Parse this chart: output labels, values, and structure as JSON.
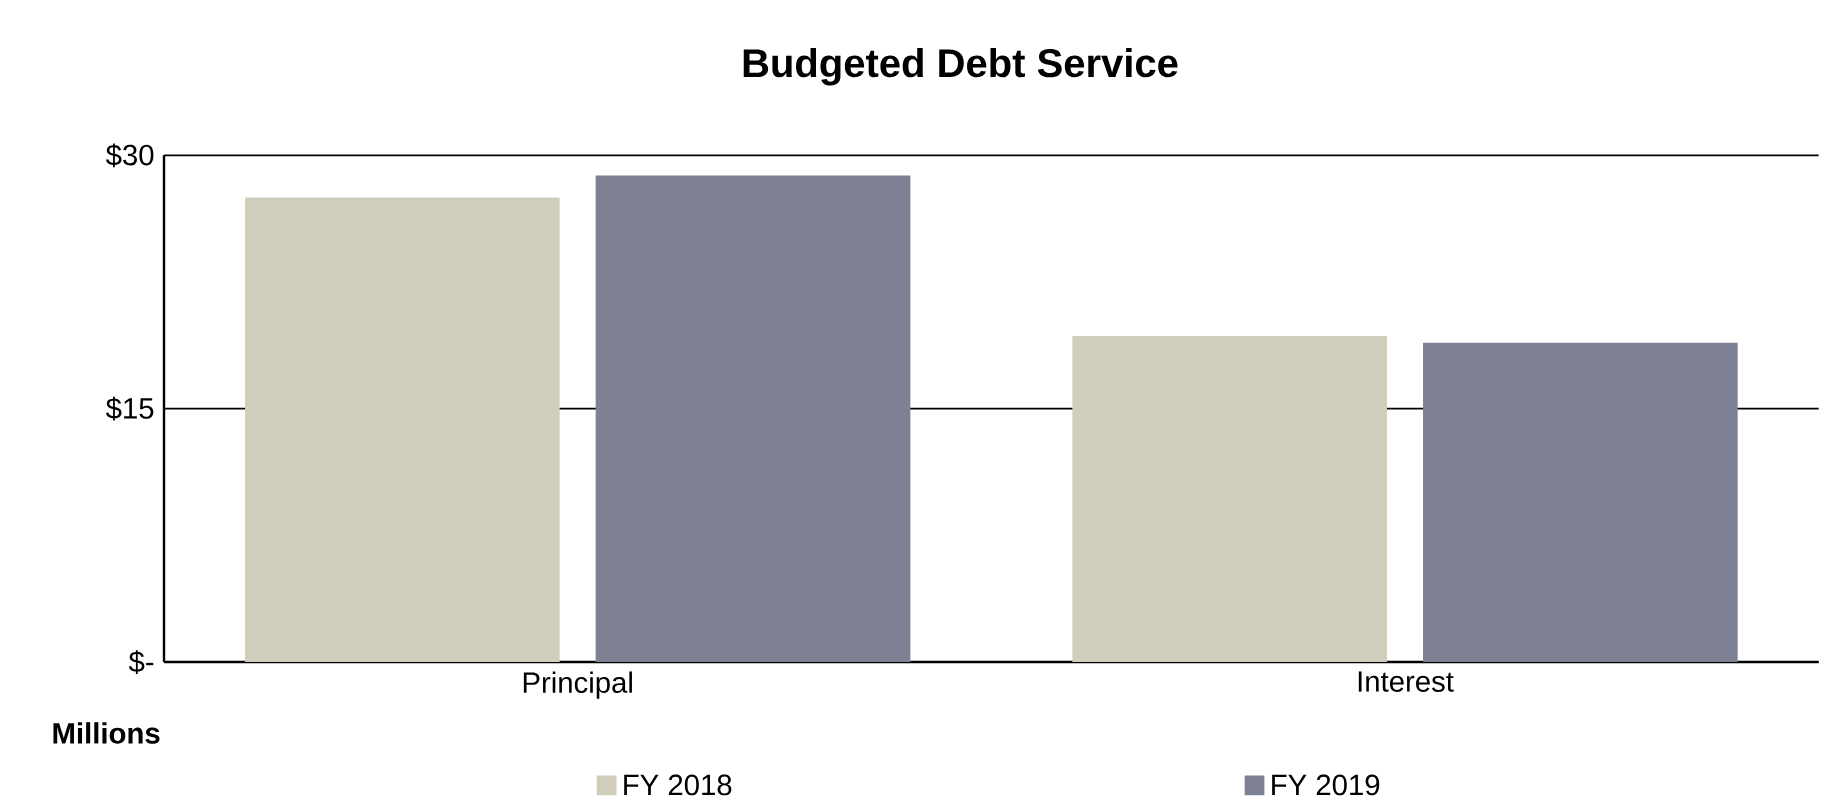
{
  "chart_data": {
    "type": "bar",
    "title": "**Budgeted Debt Service**",
    "ylabel": "**Millions**",
    "categories": [
      "Principal",
      "Interest"
    ],
    "series": [
      {
        "name": "FY 2018",
        "color": "#d0cebb",
        "values": [
          27.5,
          19.3
        ]
      },
      {
        "name": "FY 2019",
        "color": "#7d8193",
        "values": [
          28.8,
          18.9
        ]
      }
    ],
    "ylim": [
      0,
      30
    ],
    "yticks": [
      {
        "value": 0,
        "label": "$-"
      },
      {
        "value": 15,
        "label": "$15"
      },
      {
        "value": 30,
        "label": "$30"
      }
    ],
    "grid": "y",
    "legend": "bottom"
  }
}
